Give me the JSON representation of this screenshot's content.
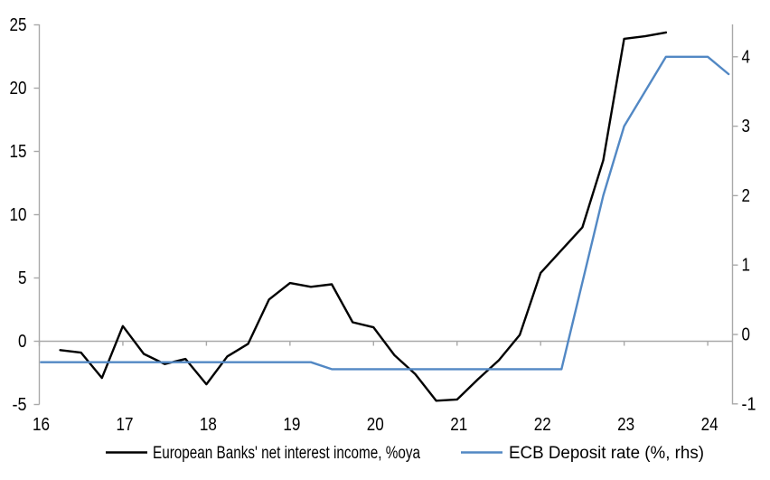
{
  "chart_data": {
    "type": "line",
    "title": "",
    "x_axis": {
      "ticks": [
        "16",
        "17",
        "18",
        "19",
        "20",
        "21",
        "22",
        "23",
        "24"
      ],
      "tick_values": [
        16,
        17,
        18,
        19,
        20,
        21,
        22,
        23,
        24
      ],
      "range": [
        16,
        24.3
      ],
      "tick_position": "on-zero-line",
      "label_position": "bottom"
    },
    "left_axis": {
      "ticks": [
        "25",
        "20",
        "15",
        "10",
        "5",
        "0",
        "-5"
      ],
      "tick_values": [
        25,
        20,
        15,
        10,
        5,
        0,
        -5
      ],
      "range": [
        -5,
        25
      ]
    },
    "right_axis": {
      "ticks": [
        "4",
        "3",
        "2",
        "1",
        "0",
        "-1"
      ],
      "tick_values": [
        4,
        3,
        2,
        1,
        0,
        -1
      ],
      "range": [
        -1,
        4.47
      ]
    },
    "grid": "zero-line-only",
    "legend_position": "bottom-center",
    "axis_color": "#a9a9a9",
    "series": [
      {
        "name": "European Banks' net interest income, %oya",
        "axis": "left",
        "color": "#000000",
        "points": [
          [
            16.25,
            -0.7
          ],
          [
            16.5,
            -0.9
          ],
          [
            16.75,
            -2.9
          ],
          [
            17.0,
            1.2
          ],
          [
            17.25,
            -1.0
          ],
          [
            17.5,
            -1.8
          ],
          [
            17.75,
            -1.4
          ],
          [
            18.0,
            -3.4
          ],
          [
            18.25,
            -1.2
          ],
          [
            18.5,
            -0.2
          ],
          [
            18.75,
            3.3
          ],
          [
            19.0,
            4.6
          ],
          [
            19.25,
            4.3
          ],
          [
            19.5,
            4.5
          ],
          [
            19.75,
            1.5
          ],
          [
            20.0,
            1.1
          ],
          [
            20.25,
            -1.1
          ],
          [
            20.5,
            -2.6
          ],
          [
            20.75,
            -4.7
          ],
          [
            21.0,
            -4.6
          ],
          [
            21.25,
            -3.0
          ],
          [
            21.5,
            -1.5
          ],
          [
            21.75,
            0.5
          ],
          [
            22.0,
            5.4
          ],
          [
            22.25,
            7.2
          ],
          [
            22.5,
            9.0
          ],
          [
            22.75,
            14.3
          ],
          [
            23.0,
            23.9
          ],
          [
            23.25,
            24.1
          ],
          [
            23.5,
            24.4
          ]
        ]
      },
      {
        "name": "ECB Deposit rate (%, rhs)",
        "axis": "right",
        "color": "#5288c4",
        "points": [
          [
            16.02,
            -0.4
          ],
          [
            19.25,
            -0.4
          ],
          [
            19.5,
            -0.5
          ],
          [
            22.25,
            -0.5
          ],
          [
            22.5,
            0.75
          ],
          [
            22.75,
            2.0
          ],
          [
            23.0,
            3.0
          ],
          [
            23.5,
            4.0
          ],
          [
            24.0,
            4.0
          ],
          [
            24.25,
            3.75
          ]
        ]
      }
    ],
    "legend": [
      {
        "label": "European Banks' net interest income, %oya",
        "color": "#000000"
      },
      {
        "label": "ECB Deposit rate (%, rhs)",
        "color": "#5288c4"
      }
    ]
  }
}
